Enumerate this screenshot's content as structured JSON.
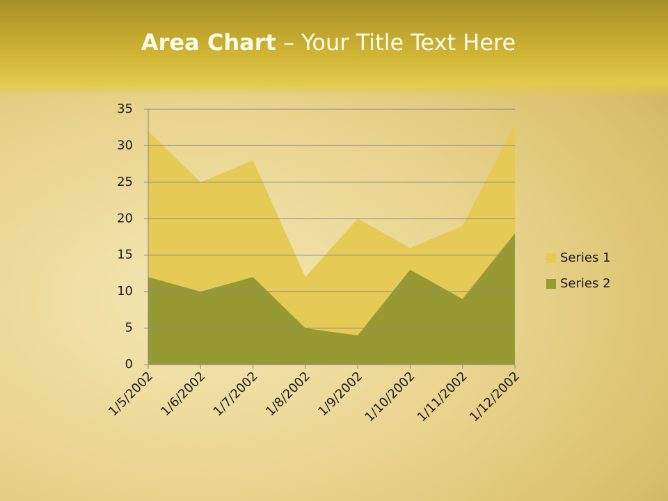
{
  "header": {
    "title_bold": "Area Chart",
    "title_rest": " – Your Title Text Here"
  },
  "chart_data": {
    "type": "area",
    "categories": [
      "1/5/2002",
      "1/6/2002",
      "1/7/2002",
      "1/8/2002",
      "1/9/2002",
      "1/10/2002",
      "1/11/2002",
      "1/12/2002"
    ],
    "series": [
      {
        "name": "Series 1",
        "color": "#e6ca56",
        "values": [
          32,
          25,
          28,
          12,
          20,
          16,
          19,
          33
        ]
      },
      {
        "name": "Series 2",
        "color": "#979a32",
        "values": [
          12,
          10,
          12,
          5,
          4,
          13,
          9,
          18
        ]
      }
    ],
    "ylim": [
      0,
      35
    ],
    "yticks": [
      0,
      5,
      10,
      15,
      20,
      25,
      30,
      35
    ],
    "grid": true,
    "legend": "right"
  }
}
